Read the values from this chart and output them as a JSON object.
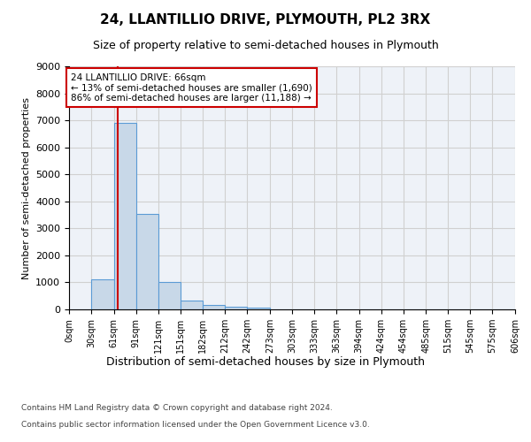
{
  "title": "24, LLANTILLIO DRIVE, PLYMOUTH, PL2 3RX",
  "subtitle": "Size of property relative to semi-detached houses in Plymouth",
  "xlabel": "Distribution of semi-detached houses by size in Plymouth",
  "ylabel": "Number of semi-detached properties",
  "footer_line1": "Contains HM Land Registry data © Crown copyright and database right 2024.",
  "footer_line2": "Contains public sector information licensed under the Open Government Licence v3.0.",
  "bar_edges": [
    0,
    30,
    61,
    91,
    121,
    151,
    182,
    212,
    242,
    273,
    303,
    333,
    363,
    394,
    424,
    454,
    485,
    515,
    545,
    575,
    606
  ],
  "bar_heights": [
    0,
    1120,
    6900,
    3550,
    1000,
    325,
    150,
    100,
    75,
    0,
    0,
    0,
    0,
    0,
    0,
    0,
    0,
    0,
    0,
    0
  ],
  "bar_color": "#c8d8e8",
  "bar_edge_color": "#5b9bd5",
  "property_size": 66,
  "property_label": "24 LLANTILLIO DRIVE: 66sqm",
  "pct_smaller": 13,
  "pct_smaller_count": "1,690",
  "pct_larger": 86,
  "pct_larger_count": "11,188",
  "vline_color": "#cc0000",
  "annotation_box_color": "#cc0000",
  "ylim": [
    0,
    9000
  ],
  "yticks": [
    0,
    1000,
    2000,
    3000,
    4000,
    5000,
    6000,
    7000,
    8000,
    9000
  ],
  "grid_color": "#d0d0d0",
  "background_color": "#eef2f8",
  "tick_labels": [
    "0sqm",
    "30sqm",
    "61sqm",
    "91sqm",
    "121sqm",
    "151sqm",
    "182sqm",
    "212sqm",
    "242sqm",
    "273sqm",
    "303sqm",
    "333sqm",
    "363sqm",
    "394sqm",
    "424sqm",
    "454sqm",
    "485sqm",
    "515sqm",
    "545sqm",
    "575sqm",
    "606sqm"
  ]
}
